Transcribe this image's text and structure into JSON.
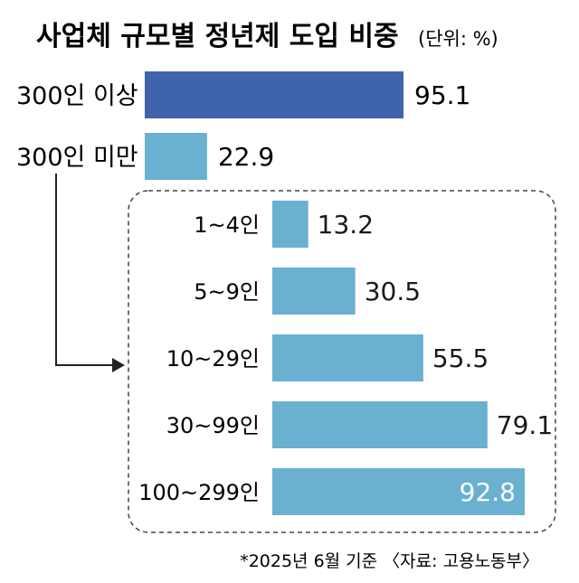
{
  "chart_data": {
    "type": "bar",
    "orientation": "horizontal",
    "title": "사업체 규모별 정년제 도입 비중",
    "unit_label": "(단위: %)",
    "groups": [
      {
        "category": "300인 이상",
        "value": 95.1,
        "color": "#3f63ad"
      },
      {
        "category": "300인 미만",
        "value": 22.9,
        "color": "#6ab0d0"
      }
    ],
    "breakdown": [
      {
        "category": "1~4인",
        "value": 13.2
      },
      {
        "category": "5~9인",
        "value": 30.5
      },
      {
        "category": "10~29인",
        "value": 55.5
      },
      {
        "category": "30~99인",
        "value": 79.1
      },
      {
        "category": "100~299인",
        "value": 92.8
      }
    ],
    "breakdown_color": "#6ab0d0",
    "primary_color": "#3f63ad",
    "footnote": "*2025년 6월 기준 〈자료: 고용노동부〉"
  }
}
